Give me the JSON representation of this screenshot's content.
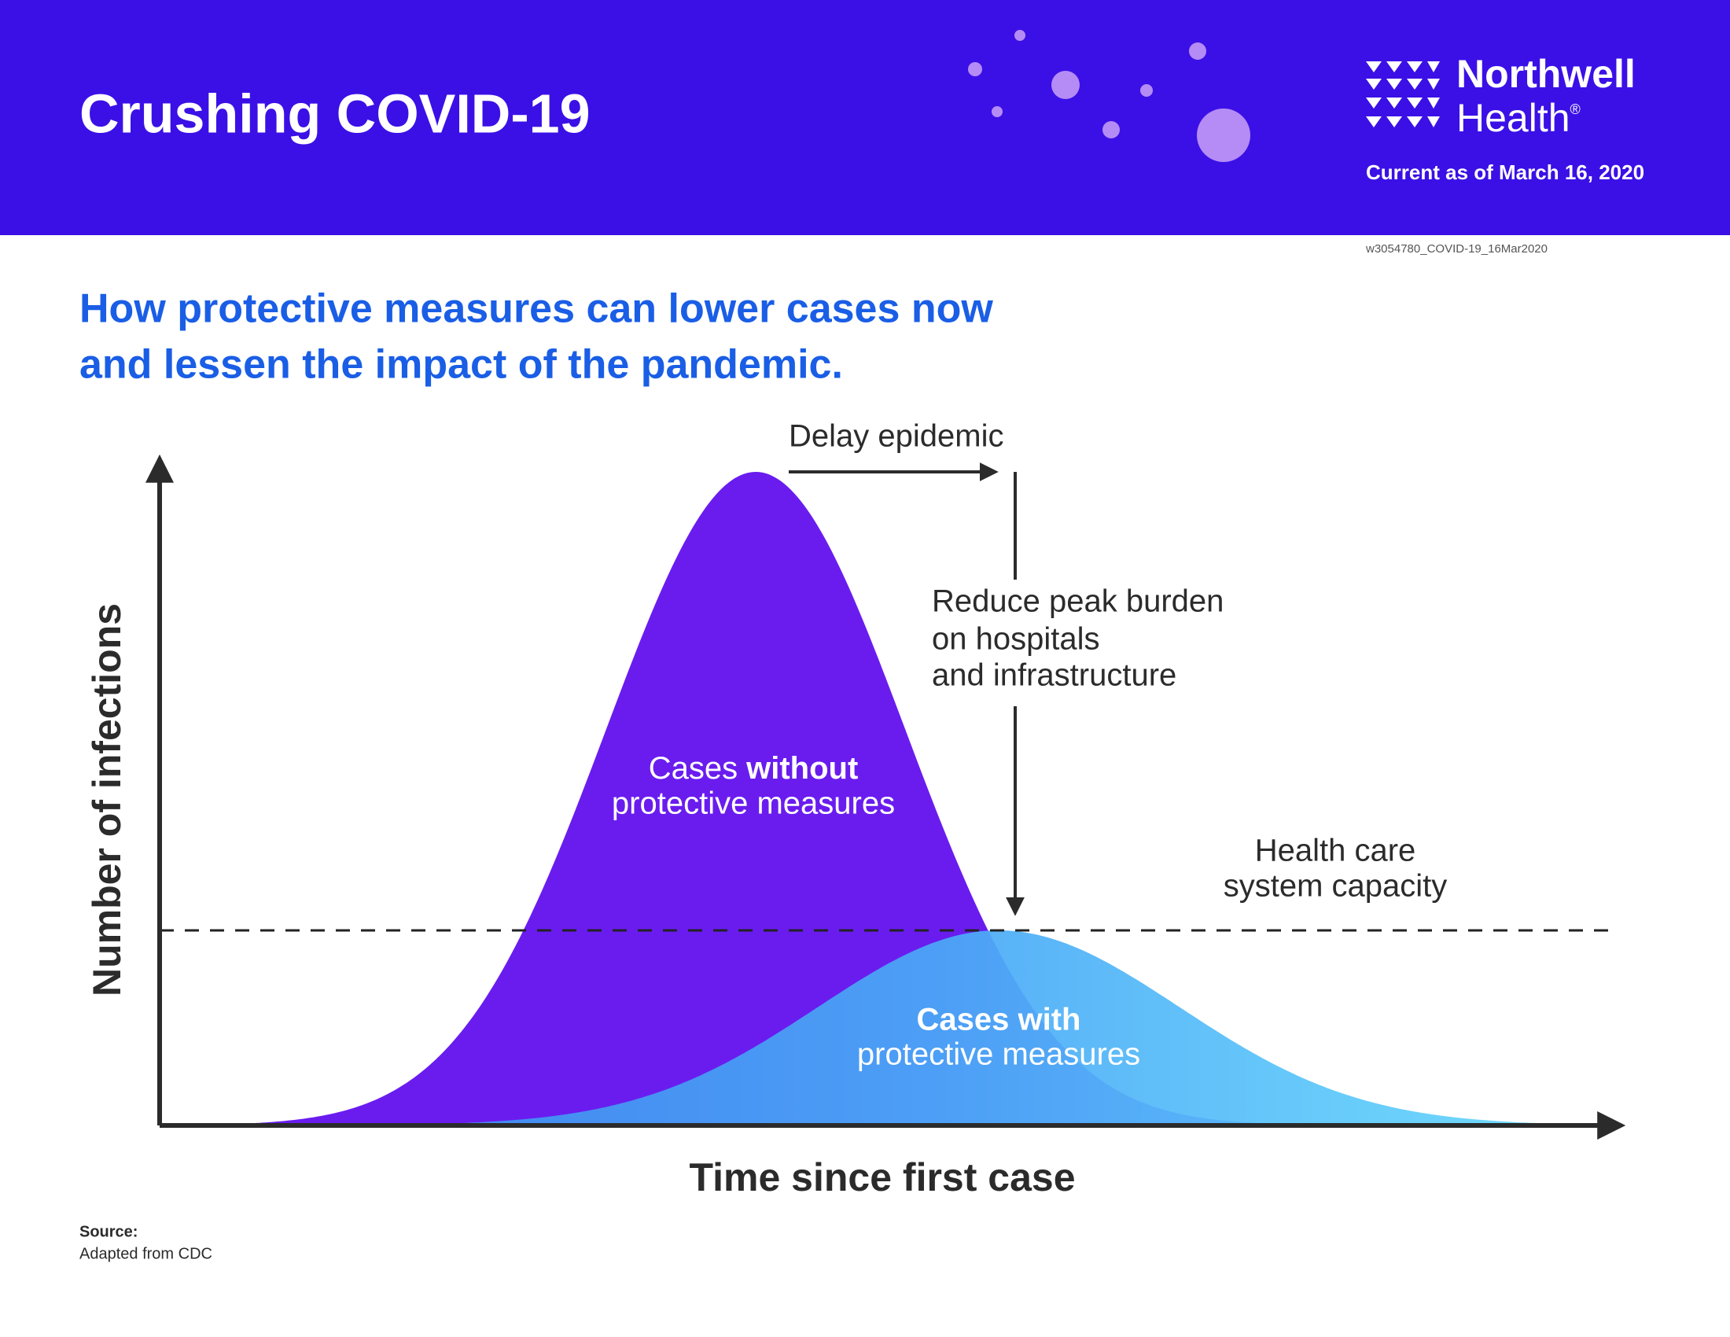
{
  "header": {
    "title": "Crushing COVID-19",
    "brand": "Northwell",
    "brand_sub": "Health",
    "brand_mark": "®",
    "date": "Current as of March 16, 2020",
    "code": "w3054780_COVID-19_16Mar2020"
  },
  "subtitle": [
    "How protective measures can lower cases now",
    "and lessen the impact of the pandemic."
  ],
  "diagram": {
    "y_axis_label": "Number of infections",
    "x_axis_label": "Time since first case",
    "delay_label": "Delay epidemic",
    "reduce_label": [
      "Reduce peak burden",
      "on hospitals",
      "and infrastructure"
    ],
    "capacity_label": [
      "Health care",
      "system capacity"
    ],
    "without_label": [
      "Cases",
      "without",
      "protective measures"
    ],
    "with_label": [
      "Cases with",
      "protective measures"
    ]
  },
  "source": {
    "heading": "Source:",
    "text": "Adapted from CDC"
  }
}
